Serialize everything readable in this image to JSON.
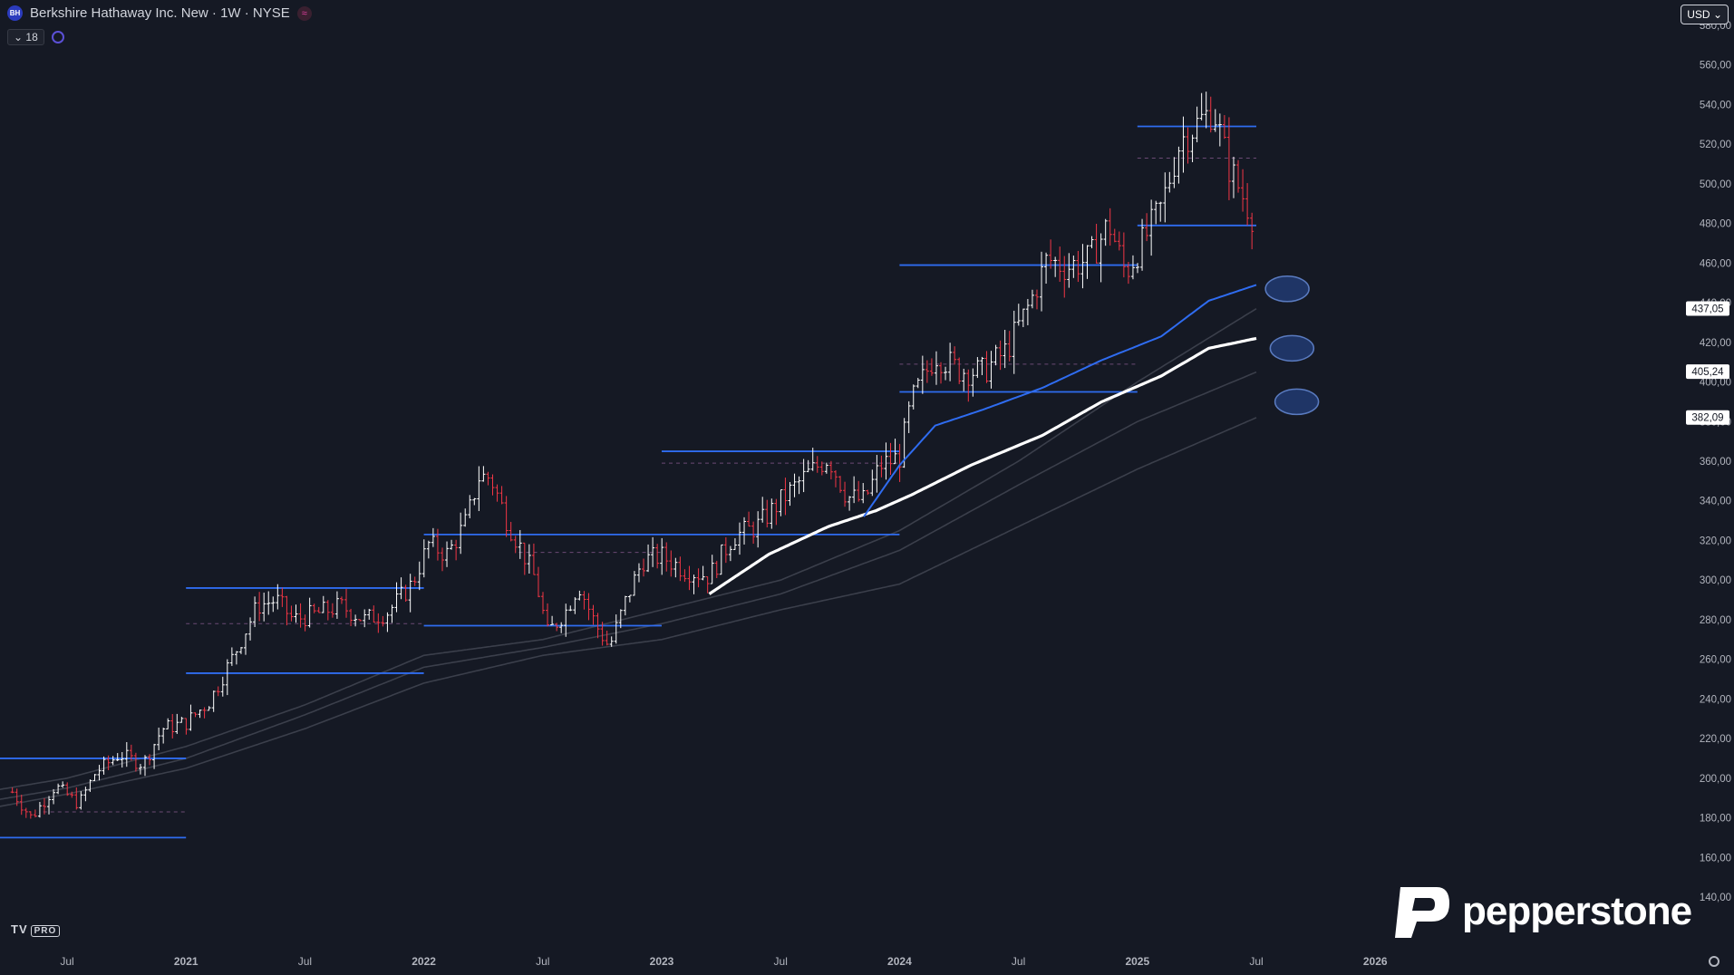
{
  "header": {
    "logo_text": "BH",
    "symbol_title": "Berkshire Hathaway Inc. New · 1W · NYSE",
    "indicator_count": "18"
  },
  "currency": "USD",
  "branding": {
    "platform": "TV",
    "platform_badge": "PRO",
    "broker": "pepperstone"
  },
  "colors": {
    "background": "#151924",
    "up": "#ffffff",
    "down": "#f23645",
    "level": "#2f6cf0",
    "ema_blue": "#2f6cf0",
    "ema_white": "#ffffff",
    "band": "#3b3f4b"
  },
  "chart_data": {
    "type": "line",
    "ylim": [
      133,
      583
    ],
    "y_ticks": [
      140,
      160,
      180,
      200,
      220,
      240,
      260,
      280,
      300,
      320,
      340,
      360,
      380,
      400,
      420,
      440,
      460,
      480,
      500,
      520,
      540,
      560,
      580
    ],
    "x_ticks": [
      {
        "label": "Jul",
        "t": 2020.5
      },
      {
        "label": "2021",
        "t": 2021.0
      },
      {
        "label": "Jul",
        "t": 2021.5
      },
      {
        "label": "2022",
        "t": 2022.0
      },
      {
        "label": "Jul",
        "t": 2022.5
      },
      {
        "label": "2023",
        "t": 2023.0
      },
      {
        "label": "Jul",
        "t": 2023.5
      },
      {
        "label": "2024",
        "t": 2024.0
      },
      {
        "label": "Jul",
        "t": 2024.5
      },
      {
        "label": "2025",
        "t": 2025.0
      },
      {
        "label": "Jul",
        "t": 2025.5
      },
      {
        "label": "2026",
        "t": 2026.0
      }
    ],
    "price_labels": [
      "437,05",
      "405,24",
      "382,09"
    ],
    "series": [
      {
        "key": "price",
        "points": [
          [
            2020.27,
            193
          ],
          [
            2020.35,
            180
          ],
          [
            2020.45,
            196
          ],
          [
            2020.55,
            187
          ],
          [
            2020.62,
            203
          ],
          [
            2020.72,
            212
          ],
          [
            2020.82,
            207
          ],
          [
            2020.9,
            225
          ],
          [
            2021.0,
            228
          ],
          [
            2021.1,
            239
          ],
          [
            2021.2,
            262
          ],
          [
            2021.3,
            287
          ],
          [
            2021.38,
            290
          ],
          [
            2021.45,
            280
          ],
          [
            2021.55,
            283
          ],
          [
            2021.65,
            287
          ],
          [
            2021.75,
            280
          ],
          [
            2021.85,
            284
          ],
          [
            2021.95,
            298
          ],
          [
            2022.02,
            318
          ],
          [
            2022.1,
            313
          ],
          [
            2022.18,
            330
          ],
          [
            2022.23,
            352
          ],
          [
            2022.28,
            352
          ],
          [
            2022.35,
            330
          ],
          [
            2022.42,
            313
          ],
          [
            2022.47,
            300
          ],
          [
            2022.52,
            273
          ],
          [
            2022.6,
            285
          ],
          [
            2022.65,
            298
          ],
          [
            2022.72,
            278
          ],
          [
            2022.78,
            266
          ],
          [
            2022.85,
            290
          ],
          [
            2022.92,
            310
          ],
          [
            2023.0,
            312
          ],
          [
            2023.1,
            305
          ],
          [
            2023.2,
            302
          ],
          [
            2023.3,
            322
          ],
          [
            2023.4,
            327
          ],
          [
            2023.5,
            340
          ],
          [
            2023.6,
            352
          ],
          [
            2023.7,
            362
          ],
          [
            2023.78,
            342
          ],
          [
            2023.85,
            340
          ],
          [
            2023.92,
            358
          ],
          [
            2024.0,
            362
          ],
          [
            2024.05,
            390
          ],
          [
            2024.15,
            414
          ],
          [
            2024.25,
            406
          ],
          [
            2024.35,
            405
          ],
          [
            2024.45,
            416
          ],
          [
            2024.55,
            440
          ],
          [
            2024.62,
            462
          ],
          [
            2024.7,
            458
          ],
          [
            2024.8,
            462
          ],
          [
            2024.88,
            480
          ],
          [
            2024.95,
            455
          ],
          [
            2025.02,
            470
          ],
          [
            2025.1,
            488
          ],
          [
            2025.18,
            522
          ],
          [
            2025.25,
            530
          ],
          [
            2025.32,
            538
          ],
          [
            2025.38,
            510
          ],
          [
            2025.45,
            492
          ],
          [
            2025.5,
            480
          ]
        ]
      },
      {
        "key": "ema_white",
        "points": [
          [
            2023.2,
            293
          ],
          [
            2023.45,
            313
          ],
          [
            2023.7,
            327
          ],
          [
            2023.9,
            335
          ],
          [
            2024.05,
            343
          ],
          [
            2024.3,
            358
          ],
          [
            2024.6,
            373
          ],
          [
            2024.85,
            390
          ],
          [
            2025.1,
            403
          ],
          [
            2025.3,
            417
          ],
          [
            2025.5,
            422
          ]
        ]
      },
      {
        "key": "ema_blue",
        "points": [
          [
            2023.85,
            332
          ],
          [
            2024.0,
            358
          ],
          [
            2024.15,
            378
          ],
          [
            2024.35,
            386
          ],
          [
            2024.6,
            397
          ],
          [
            2024.85,
            411
          ],
          [
            2025.1,
            423
          ],
          [
            2025.3,
            441
          ],
          [
            2025.5,
            449
          ]
        ]
      },
      {
        "key": "band1",
        "points": [
          [
            2020.0,
            190
          ],
          [
            2020.5,
            200
          ],
          [
            2021.0,
            216
          ],
          [
            2021.5,
            237
          ],
          [
            2022.0,
            262
          ],
          [
            2022.5,
            270
          ],
          [
            2023.0,
            285
          ],
          [
            2023.5,
            300
          ],
          [
            2024.0,
            325
          ],
          [
            2024.5,
            360
          ],
          [
            2025.0,
            400
          ],
          [
            2025.5,
            437
          ]
        ]
      },
      {
        "key": "band2",
        "points": [
          [
            2020.0,
            185
          ],
          [
            2020.5,
            195
          ],
          [
            2021.0,
            210
          ],
          [
            2021.5,
            232
          ],
          [
            2022.0,
            256
          ],
          [
            2022.5,
            266
          ],
          [
            2023.0,
            278
          ],
          [
            2023.5,
            293
          ],
          [
            2024.0,
            315
          ],
          [
            2024.5,
            348
          ],
          [
            2025.0,
            380
          ],
          [
            2025.5,
            405
          ]
        ]
      },
      {
        "key": "band3",
        "points": [
          [
            2020.0,
            181
          ],
          [
            2020.5,
            192
          ],
          [
            2021.0,
            205
          ],
          [
            2021.5,
            225
          ],
          [
            2022.0,
            248
          ],
          [
            2022.5,
            262
          ],
          [
            2023.0,
            270
          ],
          [
            2023.5,
            285
          ],
          [
            2024.0,
            298
          ],
          [
            2024.5,
            327
          ],
          [
            2025.0,
            356
          ],
          [
            2025.5,
            382
          ]
        ]
      }
    ],
    "levels": [
      {
        "y": 170,
        "from": 2020.0,
        "to": 2021.0
      },
      {
        "y": 210,
        "from": 2020.0,
        "to": 2021.0
      },
      {
        "y": 183,
        "from": 2020.4,
        "to": 2021.0,
        "dashed": true
      },
      {
        "y": 253,
        "from": 2021.0,
        "to": 2022.0
      },
      {
        "y": 296,
        "from": 2021.0,
        "to": 2022.0
      },
      {
        "y": 278,
        "from": 2021.0,
        "to": 2022.0,
        "dashed": true
      },
      {
        "y": 277,
        "from": 2022.0,
        "to": 2023.0
      },
      {
        "y": 323,
        "from": 2022.0,
        "to": 2023.0
      },
      {
        "y": 314,
        "from": 2022.4,
        "to": 2023.0,
        "dashed": true
      },
      {
        "y": 323,
        "from": 2023.0,
        "to": 2024.0
      },
      {
        "y": 365,
        "from": 2023.0,
        "to": 2024.0
      },
      {
        "y": 359,
        "from": 2023.0,
        "to": 2024.0,
        "dashed": true
      },
      {
        "y": 395,
        "from": 2024.0,
        "to": 2025.0
      },
      {
        "y": 459,
        "from": 2024.0,
        "to": 2025.0
      },
      {
        "y": 409,
        "from": 2024.0,
        "to": 2025.0,
        "dashed": true
      },
      {
        "y": 479,
        "from": 2025.0,
        "to": 2025.5
      },
      {
        "y": 529,
        "from": 2025.0,
        "to": 2025.5
      },
      {
        "y": 513,
        "from": 2025.0,
        "to": 2025.5,
        "dashed": true
      }
    ],
    "markers": [
      {
        "t": 2025.63,
        "y": 447
      },
      {
        "t": 2025.65,
        "y": 417
      },
      {
        "t": 2025.67,
        "y": 390
      }
    ]
  }
}
